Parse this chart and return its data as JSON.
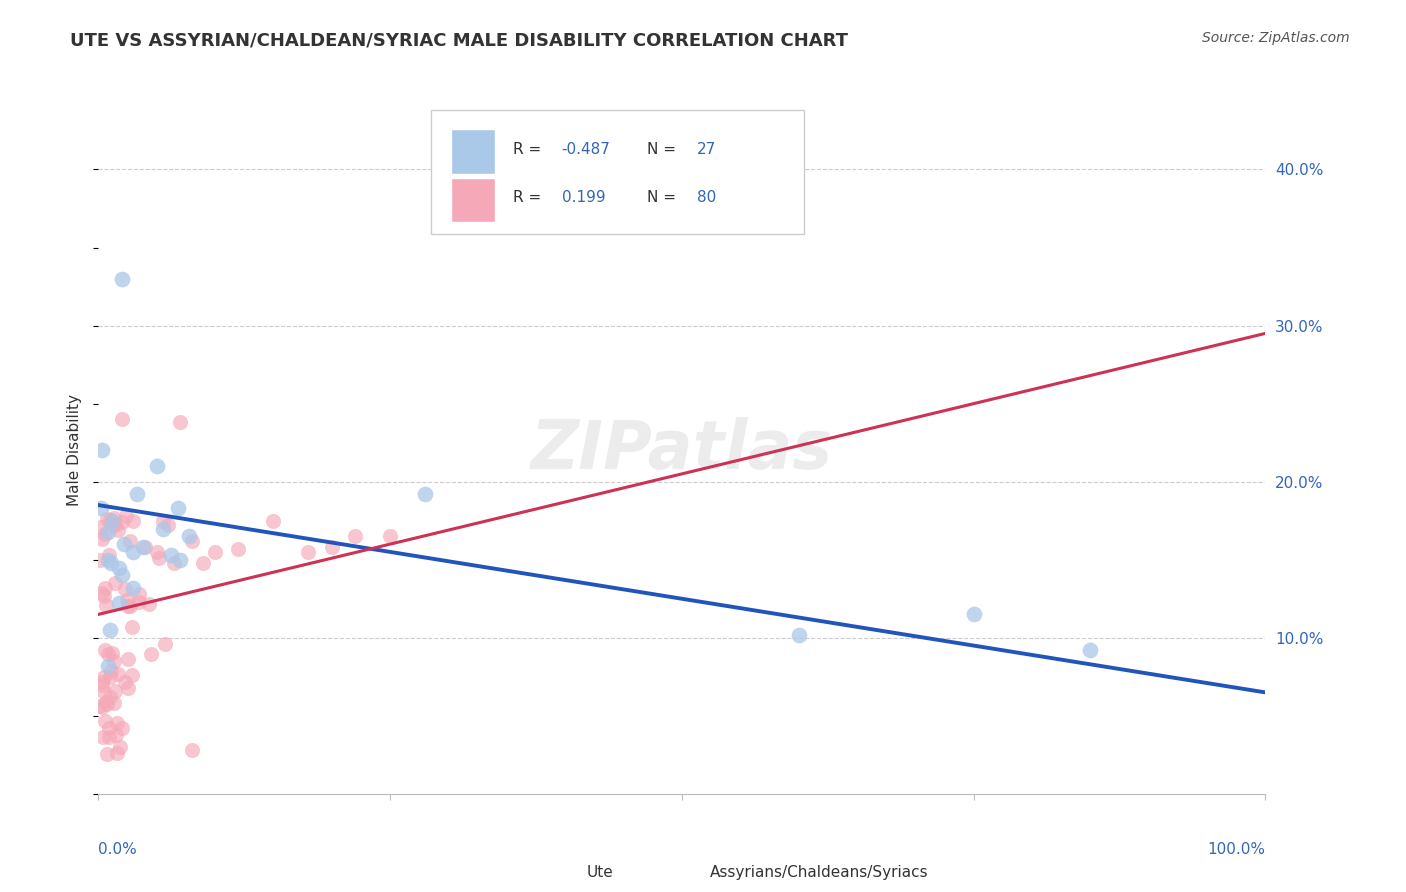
{
  "title": "UTE VS ASSYRIAN/CHALDEAN/SYRIAC MALE DISABILITY CORRELATION CHART",
  "source": "Source: ZipAtlas.com",
  "ylabel": "Male Disability",
  "ute_label": "Ute",
  "acs_label": "Assyrians/Chaldeans/Syriacs",
  "ute_R": "-0.487",
  "ute_N": "27",
  "acs_R": "0.199",
  "acs_N": "80",
  "ute_color": "#aac8e8",
  "acs_color": "#f5a8b8",
  "ute_line_color": "#2255bb",
  "acs_line_color": "#cc3355",
  "acs_dash_color": "#ddaaaa",
  "text_color": "#333333",
  "blue_label_color": "#3366bb",
  "grid_color": "#cccccc",
  "xlim": [
    0.0,
    1.0
  ],
  "ylim": [
    0.0,
    0.44
  ],
  "right_yticks": [
    0.1,
    0.2,
    0.3,
    0.4
  ],
  "right_yticklabels": [
    "10.0%",
    "20.0%",
    "30.0%",
    "40.0%"
  ],
  "ute_line_y0": 0.185,
  "ute_line_y1": 0.065,
  "acs_line_y0": 0.115,
  "acs_line_y1": 0.295,
  "ute_x": [
    0.02,
    0.002,
    0.003,
    0.05,
    0.033,
    0.012,
    0.008,
    0.022,
    0.038,
    0.055,
    0.062,
    0.078,
    0.03,
    0.068,
    0.011,
    0.008,
    0.018,
    0.02,
    0.03,
    0.018,
    0.01,
    0.008,
    0.28,
    0.6,
    0.75,
    0.85,
    0.07
  ],
  "ute_y": [
    0.33,
    0.183,
    0.22,
    0.21,
    0.192,
    0.175,
    0.168,
    0.16,
    0.158,
    0.17,
    0.153,
    0.165,
    0.155,
    0.183,
    0.148,
    0.15,
    0.145,
    0.14,
    0.132,
    0.122,
    0.105,
    0.082,
    0.192,
    0.102,
    0.115,
    0.092,
    0.15
  ]
}
